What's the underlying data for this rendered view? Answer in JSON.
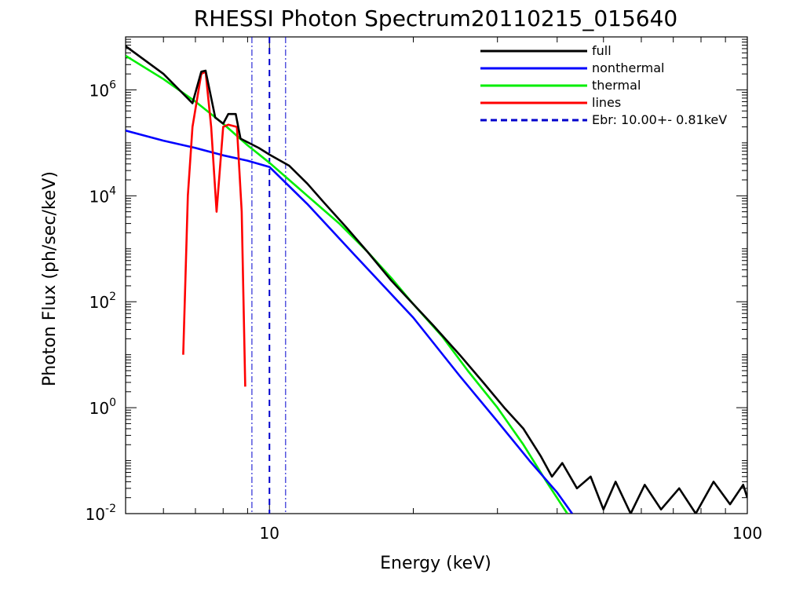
{
  "chart_data": {
    "type": "line",
    "title": "RHESSI Photon Spectrum20110215_015640",
    "xlabel": "Energy (keV)",
    "ylabel": "Photon Flux (ph/sec/keV)",
    "xscale": "log",
    "yscale": "log",
    "xlim": [
      5.0,
      100
    ],
    "ylim": [
      0.01,
      10000000
    ],
    "x_ticks": [
      {
        "value": 10,
        "label": "10"
      },
      {
        "value": 100,
        "label": "100"
      }
    ],
    "y_ticks": [
      {
        "value": 0.01,
        "base": "10",
        "exp": "-2"
      },
      {
        "value": 1,
        "base": "10",
        "exp": "0"
      },
      {
        "value": 100,
        "base": "10",
        "exp": "2"
      },
      {
        "value": 10000,
        "base": "10",
        "exp": "4"
      },
      {
        "value": 1000000,
        "base": "10",
        "exp": "6"
      }
    ],
    "grid": false,
    "legend_position": "top-right",
    "series": [
      {
        "name": "full",
        "color": "#000000",
        "points": [
          [
            5.0,
            6700000
          ],
          [
            6.0,
            2000000
          ],
          [
            6.9,
            560000
          ],
          [
            7.2,
            2200000
          ],
          [
            7.35,
            2300000
          ],
          [
            7.7,
            300000
          ],
          [
            8.0,
            230000
          ],
          [
            8.2,
            350000
          ],
          [
            8.5,
            350000
          ],
          [
            8.7,
            120000
          ],
          [
            9.5,
            80000
          ],
          [
            10.0,
            60000
          ],
          [
            11.0,
            37000
          ],
          [
            12.0,
            17000
          ],
          [
            13.0,
            7500
          ],
          [
            14.5,
            2500
          ],
          [
            16.0,
            900
          ],
          [
            18.0,
            250
          ],
          [
            20.0,
            90
          ],
          [
            22.0,
            36
          ],
          [
            25.0,
            10
          ],
          [
            28.0,
            3.0
          ],
          [
            31.0,
            1.0
          ],
          [
            34.0,
            0.4
          ],
          [
            37.0,
            0.12
          ],
          [
            39.0,
            0.05
          ],
          [
            41.0,
            0.09
          ],
          [
            44.0,
            0.03
          ],
          [
            47.0,
            0.05
          ],
          [
            50.0,
            0.012
          ],
          [
            53.0,
            0.04
          ],
          [
            57.0,
            0.01
          ],
          [
            61.0,
            0.035
          ],
          [
            66.0,
            0.012
          ],
          [
            72.0,
            0.03
          ],
          [
            78.0,
            0.01
          ],
          [
            85.0,
            0.04
          ],
          [
            92.0,
            0.015
          ],
          [
            98.0,
            0.035
          ],
          [
            100.0,
            0.02
          ]
        ]
      },
      {
        "name": "nonthermal",
        "color": "#0000ff",
        "points": [
          [
            5.0,
            170000
          ],
          [
            6.0,
            110000
          ],
          [
            7.0,
            80000
          ],
          [
            8.0,
            58000
          ],
          [
            9.0,
            46000
          ],
          [
            10.0,
            35000
          ],
          [
            12.0,
            7000
          ],
          [
            15.0,
            800
          ],
          [
            20.0,
            50
          ],
          [
            25.0,
            4.0
          ],
          [
            30.0,
            0.55
          ],
          [
            35.0,
            0.1
          ],
          [
            40.0,
            0.025
          ],
          [
            43.0,
            0.01
          ]
        ]
      },
      {
        "name": "thermal",
        "color": "#00ee00",
        "points": [
          [
            5.0,
            4400000
          ],
          [
            6.0,
            1600000
          ],
          [
            7.0,
            600000
          ],
          [
            8.0,
            230000
          ],
          [
            9.0,
            90000
          ],
          [
            10.0,
            42000
          ],
          [
            12.0,
            10000
          ],
          [
            14.0,
            3000
          ],
          [
            16.0,
            900
          ],
          [
            18.0,
            280
          ],
          [
            20.0,
            90
          ],
          [
            23.0,
            22
          ],
          [
            26.0,
            5.0
          ],
          [
            30.0,
            1.0
          ],
          [
            34.0,
            0.2
          ],
          [
            38.0,
            0.04
          ],
          [
            42.0,
            0.01
          ]
        ]
      },
      {
        "name": "lines",
        "color": "#ff0000",
        "points": [
          [
            6.6,
            10
          ],
          [
            6.75,
            10000
          ],
          [
            6.9,
            200000
          ],
          [
            7.2,
            2000000
          ],
          [
            7.35,
            2200000
          ],
          [
            7.55,
            200000
          ],
          [
            7.75,
            5000
          ],
          [
            8.0,
            200000
          ],
          [
            8.2,
            220000
          ],
          [
            8.55,
            200000
          ],
          [
            8.75,
            5000
          ],
          [
            8.9,
            2.5
          ]
        ]
      }
    ],
    "annotations": {
      "break_energy": {
        "label": "Ebr:  10.00+-  0.81keV",
        "color": "#0000cc",
        "value": 10.0,
        "lower": 9.19,
        "upper": 10.81
      }
    }
  }
}
